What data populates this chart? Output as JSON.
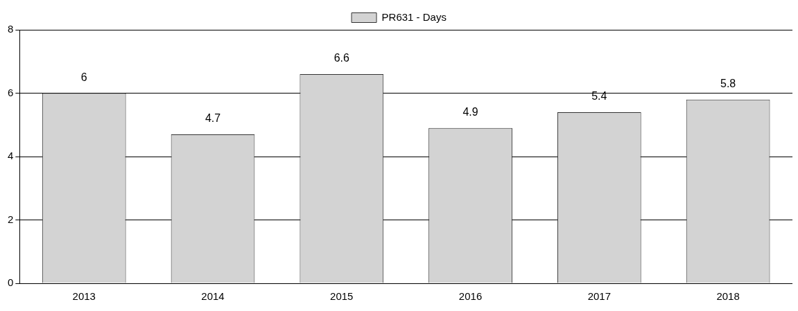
{
  "chart_data": {
    "type": "bar",
    "categories": [
      "2013",
      "2014",
      "2015",
      "2016",
      "2017",
      "2018"
    ],
    "series": [
      {
        "name": "PR631 - Days",
        "color": "#d3d3d3",
        "values": [
          6,
          4.7,
          6.6,
          4.9,
          5.4,
          5.8
        ]
      }
    ],
    "ylim": [
      0,
      8
    ],
    "yticks": [
      0,
      2,
      4,
      6,
      8
    ],
    "grid": "y",
    "legend": "top",
    "data_labels": true
  }
}
